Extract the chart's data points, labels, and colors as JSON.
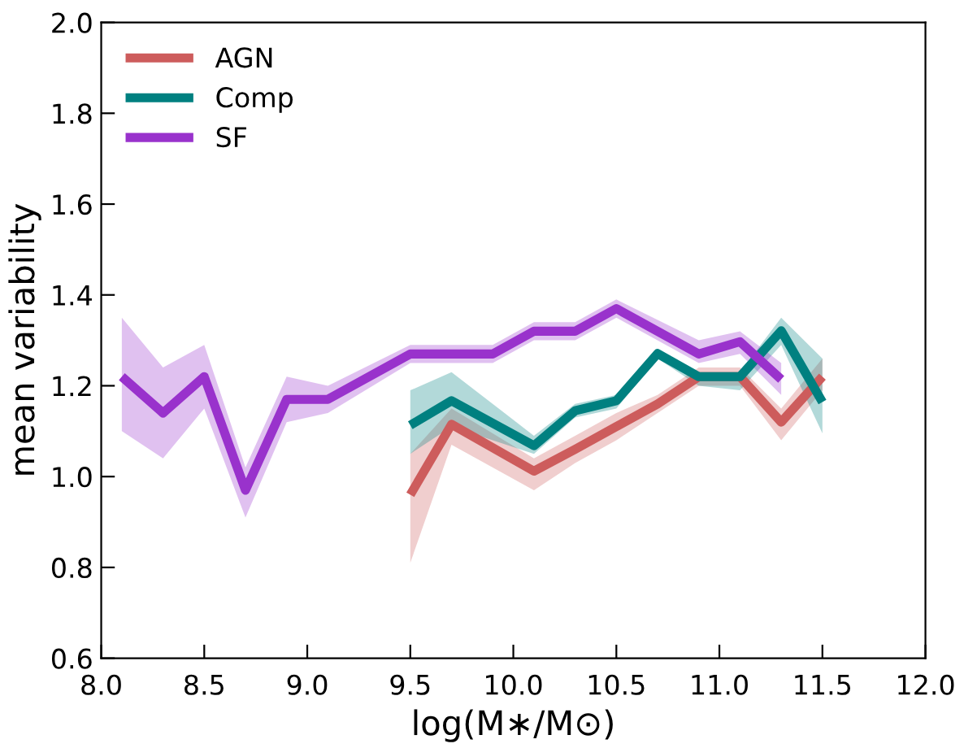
{
  "chart_data": {
    "type": "line",
    "xlabel": "log(M∗/M⊙)",
    "ylabel": "mean variability",
    "xlim": [
      8.0,
      12.0
    ],
    "xticks": [
      {
        "value": 8,
        "label": "8.0"
      },
      8.5,
      {
        "value": 9,
        "label": "9.0"
      },
      9.5,
      {
        "value": 10,
        "label": "10.0"
      },
      10.5,
      {
        "value": 11,
        "label": "11.0"
      },
      11.5,
      {
        "value": 12,
        "label": "12.0"
      }
    ],
    "ylim": [
      0.6,
      2.0
    ],
    "yticks": [
      0.6,
      0.8,
      {
        "value": 1,
        "label": "1.0"
      },
      1.2,
      1.4,
      1.6,
      1.8,
      {
        "value": 2,
        "label": "2.0"
      }
    ],
    "grid": false,
    "legend": "top left",
    "line_style": "solid",
    "marker": "none",
    "series": [
      {
        "name": "AGN",
        "color": "#cd5c5c",
        "x": [
          9.5,
          9.7,
          10.1,
          10.3,
          10.5,
          10.7,
          10.9,
          11.1,
          11.3,
          11.5
        ],
        "values": [
          0.96,
          1.115,
          1.012,
          1.06,
          1.11,
          1.16,
          1.22,
          1.22,
          1.12,
          1.22
        ],
        "lower": [
          0.81,
          1.07,
          0.97,
          1.03,
          1.08,
          1.14,
          1.2,
          1.2,
          1.08,
          1.19
        ],
        "upper": [
          1.05,
          1.15,
          1.04,
          1.09,
          1.14,
          1.18,
          1.24,
          1.24,
          1.15,
          1.26
        ]
      },
      {
        "name": "Comp",
        "color": "#008080",
        "x": [
          9.5,
          9.7,
          10.1,
          10.3,
          10.5,
          10.7,
          10.9,
          11.1,
          11.3,
          11.5
        ],
        "values": [
          1.113,
          1.167,
          1.068,
          1.145,
          1.167,
          1.271,
          1.22,
          1.22,
          1.321,
          1.164
        ],
        "lower": [
          1.05,
          1.11,
          1.05,
          1.13,
          1.15,
          1.26,
          1.2,
          1.19,
          1.29,
          1.095
        ],
        "upper": [
          1.19,
          1.23,
          1.09,
          1.16,
          1.18,
          1.28,
          1.23,
          1.23,
          1.35,
          1.26
        ]
      },
      {
        "name": "SF",
        "color": "#9932cc",
        "x": [
          8.1,
          8.3,
          8.5,
          8.7,
          8.9,
          9.1,
          9.5,
          9.9,
          10.1,
          10.3,
          10.5,
          10.9,
          11.1,
          11.3
        ],
        "values": [
          1.22,
          1.14,
          1.22,
          0.97,
          1.17,
          1.17,
          1.27,
          1.27,
          1.32,
          1.32,
          1.37,
          1.27,
          1.297,
          1.214
        ],
        "lower": [
          1.1,
          1.04,
          1.15,
          0.91,
          1.12,
          1.14,
          1.25,
          1.25,
          1.3,
          1.3,
          1.35,
          1.25,
          1.27,
          1.18
        ],
        "upper": [
          1.35,
          1.24,
          1.29,
          1.02,
          1.22,
          1.2,
          1.29,
          1.29,
          1.34,
          1.34,
          1.39,
          1.3,
          1.32,
          1.25
        ]
      }
    ]
  }
}
